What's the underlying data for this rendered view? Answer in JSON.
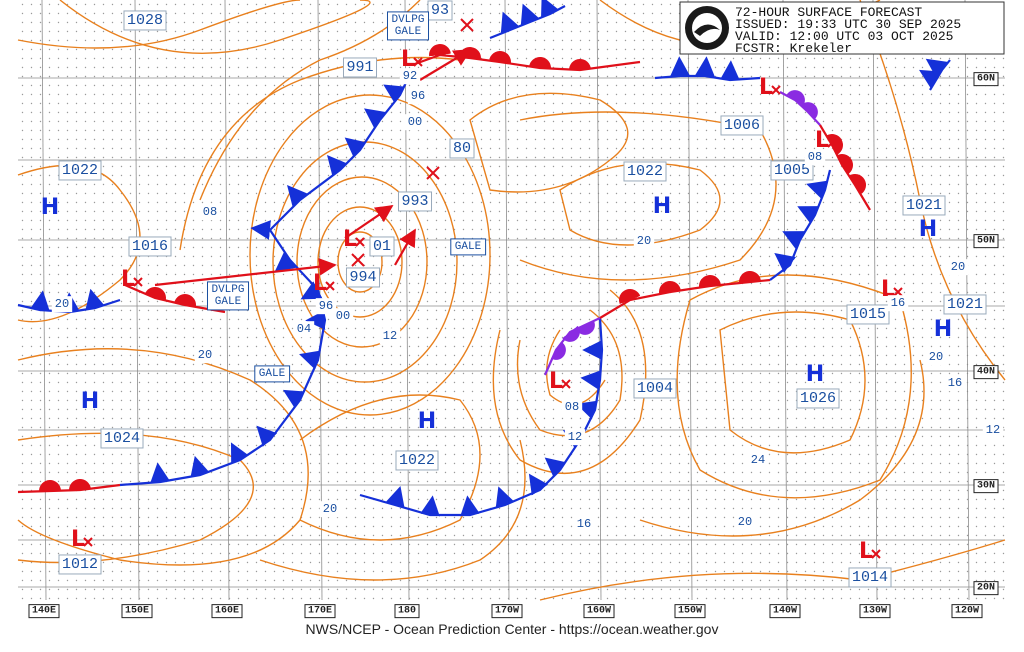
{
  "header": {
    "lines": [
      "72-HOUR SURFACE FORECAST",
      "ISSUED: 19:33 UTC 30 SEP 2025",
      "VALID:  12:00 UTC 03 OCT 2025",
      "FCSTR:  Krekeler"
    ]
  },
  "footer": "NWS/NCEP - Ocean Prediction Center - https://ocean.weather.gov",
  "longitudes": [
    "140E",
    "150E",
    "160E",
    "170E",
    "180",
    "170W",
    "160W",
    "150W",
    "140W",
    "130W",
    "120W"
  ],
  "latitudes": [
    "60N",
    "50N",
    "40N",
    "30N",
    "20N"
  ],
  "centers": [
    {
      "value": "1028"
    },
    {
      "symbol": "H",
      "value": "1022"
    },
    {
      "symbol": "L",
      "value": "1016"
    },
    {
      "symbol": "L",
      "value": "991"
    },
    {
      "value": "93"
    },
    {
      "value": "80"
    },
    {
      "value": "993"
    },
    {
      "symbol": "L",
      "value": "01"
    },
    {
      "symbol": "L",
      "value": "994"
    },
    {
      "symbol": "H",
      "value": "1024"
    },
    {
      "symbol": "L",
      "value": "1012"
    },
    {
      "symbol": "H",
      "value": "1022"
    },
    {
      "symbol": "H",
      "value": "1022"
    },
    {
      "symbol": "L"
    },
    {
      "value": "1004"
    },
    {
      "symbol": "H",
      "value": "1026"
    },
    {
      "symbol": "L",
      "value": "1006"
    },
    {
      "symbol": "L",
      "value": "1005"
    },
    {
      "symbol": "H",
      "value": "1021"
    },
    {
      "symbol": "H",
      "value": "1021"
    },
    {
      "symbol": "L",
      "value": "1015"
    },
    {
      "symbol": "L",
      "value": "1014"
    }
  ],
  "gale_labels": [
    [
      "DVLPG",
      "GALE"
    ],
    [
      "DVLPG",
      "GALE"
    ],
    [
      "GALE"
    ],
    [
      "GALE"
    ]
  ],
  "isobar_labels": [
    "08",
    "20",
    "20",
    "96",
    "00",
    "92",
    "96",
    "04",
    "00",
    "12",
    "20",
    "08",
    "12",
    "16",
    "20",
    "24",
    "20",
    "08",
    "20",
    "16",
    "20",
    "16",
    "12"
  ]
}
